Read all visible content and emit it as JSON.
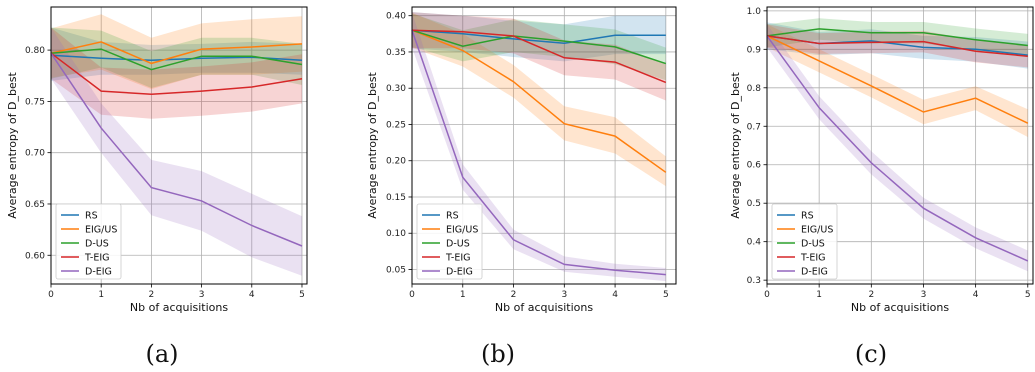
{
  "chart_data": [
    {
      "type": "line",
      "caption": "(a)",
      "xlabel": "Nb of acquisitions",
      "ylabel": "Average entropy of D_best",
      "x": [
        0,
        1,
        2,
        3,
        4,
        5
      ],
      "xlim": [
        0,
        5.1
      ],
      "ylim": [
        0.572,
        0.842
      ],
      "yticks": [
        0.6,
        0.65,
        0.7,
        0.75,
        0.8
      ],
      "ytick_labels": [
        "0.60",
        "0.65",
        "0.70",
        "0.75",
        "0.80"
      ],
      "grid": true,
      "legend_position": "lower-left",
      "series": [
        {
          "name": "RS",
          "color": "#1f77b4",
          "values": [
            0.795,
            0.792,
            0.79,
            0.792,
            0.793,
            0.79
          ],
          "lower": [
            0.77,
            0.776,
            0.776,
            0.778,
            0.778,
            0.776
          ],
          "upper": [
            0.822,
            0.808,
            0.805,
            0.806,
            0.808,
            0.806
          ]
        },
        {
          "name": "EIG/US",
          "color": "#ff7f0e",
          "values": [
            0.797,
            0.808,
            0.787,
            0.801,
            0.803,
            0.806
          ],
          "lower": [
            0.773,
            0.781,
            0.762,
            0.776,
            0.776,
            0.779
          ],
          "upper": [
            0.821,
            0.835,
            0.812,
            0.826,
            0.83,
            0.833
          ]
        },
        {
          "name": "D-US",
          "color": "#2ca02c",
          "values": [
            0.797,
            0.801,
            0.781,
            0.794,
            0.794,
            0.786
          ],
          "lower": [
            0.772,
            0.783,
            0.763,
            0.776,
            0.776,
            0.766
          ],
          "upper": [
            0.822,
            0.819,
            0.799,
            0.812,
            0.812,
            0.806
          ]
        },
        {
          "name": "T-EIG",
          "color": "#d62728",
          "values": [
            0.797,
            0.76,
            0.757,
            0.76,
            0.764,
            0.772
          ],
          "lower": [
            0.772,
            0.737,
            0.733,
            0.736,
            0.74,
            0.748
          ],
          "upper": [
            0.822,
            0.783,
            0.781,
            0.784,
            0.788,
            0.796
          ]
        },
        {
          "name": "D-EIG",
          "color": "#9467bd",
          "values": [
            0.797,
            0.724,
            0.666,
            0.653,
            0.629,
            0.609
          ],
          "lower": [
            0.772,
            0.7,
            0.639,
            0.624,
            0.598,
            0.58
          ],
          "upper": [
            0.822,
            0.748,
            0.693,
            0.682,
            0.66,
            0.638
          ]
        }
      ]
    },
    {
      "type": "line",
      "caption": "(b)",
      "xlabel": "Nb of acquisitions",
      "ylabel": "Average entropy of D_best",
      "x": [
        0,
        1,
        2,
        3,
        4,
        5
      ],
      "xlim": [
        0,
        5.2
      ],
      "ylim": [
        0.03,
        0.412
      ],
      "yticks": [
        0.05,
        0.1,
        0.15,
        0.2,
        0.25,
        0.3,
        0.35,
        0.4
      ],
      "ytick_labels": [
        "0.05",
        "0.10",
        "0.15",
        "0.20",
        "0.25",
        "0.30",
        "0.35",
        "0.40"
      ],
      "grid": true,
      "legend_position": "lower-left",
      "series": [
        {
          "name": "RS",
          "color": "#1f77b4",
          "values": [
            0.38,
            0.375,
            0.368,
            0.362,
            0.373,
            0.373
          ],
          "lower": [
            0.355,
            0.35,
            0.343,
            0.337,
            0.347,
            0.347
          ],
          "upper": [
            0.405,
            0.4,
            0.393,
            0.388,
            0.4,
            0.4
          ]
        },
        {
          "name": "EIG/US",
          "color": "#ff7f0e",
          "values": [
            0.38,
            0.352,
            0.309,
            0.251,
            0.234,
            0.184
          ],
          "lower": [
            0.356,
            0.33,
            0.287,
            0.228,
            0.21,
            0.165
          ],
          "upper": [
            0.404,
            0.375,
            0.332,
            0.275,
            0.26,
            0.206
          ]
        },
        {
          "name": "D-US",
          "color": "#2ca02c",
          "values": [
            0.38,
            0.358,
            0.372,
            0.365,
            0.357,
            0.334
          ],
          "lower": [
            0.357,
            0.337,
            0.35,
            0.343,
            0.333,
            0.311
          ],
          "upper": [
            0.403,
            0.38,
            0.395,
            0.388,
            0.381,
            0.356
          ]
        },
        {
          "name": "T-EIG",
          "color": "#d62728",
          "values": [
            0.38,
            0.378,
            0.372,
            0.342,
            0.336,
            0.308
          ],
          "lower": [
            0.355,
            0.355,
            0.348,
            0.318,
            0.312,
            0.283
          ],
          "upper": [
            0.405,
            0.4,
            0.396,
            0.366,
            0.36,
            0.333
          ]
        },
        {
          "name": "D-EIG",
          "color": "#9467bd",
          "values": [
            0.38,
            0.177,
            0.091,
            0.057,
            0.049,
            0.043
          ],
          "lower": [
            0.356,
            0.16,
            0.078,
            0.047,
            0.04,
            0.034
          ],
          "upper": [
            0.404,
            0.195,
            0.105,
            0.068,
            0.058,
            0.052
          ]
        }
      ]
    },
    {
      "type": "line",
      "caption": "(c)",
      "xlabel": "Nb of acquisitions",
      "ylabel": "Average entropy of D_best",
      "x": [
        0,
        1,
        2,
        3,
        4,
        5
      ],
      "xlim": [
        0,
        5.1
      ],
      "ylim": [
        0.29,
        1.01
      ],
      "yticks": [
        0.3,
        0.4,
        0.5,
        0.6,
        0.7,
        0.8,
        0.9,
        1.0
      ],
      "ytick_labels": [
        "0.3",
        "0.4",
        "0.5",
        "0.6",
        "0.7",
        "0.8",
        "0.9",
        "1.0"
      ],
      "grid": true,
      "legend_position": "lower-left",
      "series": [
        {
          "name": "RS",
          "color": "#1f77b4",
          "values": [
            0.935,
            0.915,
            0.922,
            0.905,
            0.9,
            0.885
          ],
          "lower": [
            0.9,
            0.885,
            0.89,
            0.875,
            0.868,
            0.85
          ],
          "upper": [
            0.97,
            0.945,
            0.952,
            0.935,
            0.932,
            0.92
          ]
        },
        {
          "name": "EIG/US",
          "color": "#ff7f0e",
          "values": [
            0.935,
            0.87,
            0.805,
            0.737,
            0.773,
            0.708
          ],
          "lower": [
            0.905,
            0.84,
            0.775,
            0.705,
            0.742,
            0.672
          ],
          "upper": [
            0.965,
            0.9,
            0.835,
            0.769,
            0.804,
            0.744
          ]
        },
        {
          "name": "D-US",
          "color": "#2ca02c",
          "values": [
            0.935,
            0.953,
            0.943,
            0.943,
            0.925,
            0.91
          ],
          "lower": [
            0.905,
            0.925,
            0.915,
            0.915,
            0.896,
            0.88
          ],
          "upper": [
            0.965,
            0.981,
            0.971,
            0.971,
            0.954,
            0.94
          ]
        },
        {
          "name": "T-EIG",
          "color": "#d62728",
          "values": [
            0.935,
            0.915,
            0.918,
            0.92,
            0.895,
            0.882
          ],
          "lower": [
            0.905,
            0.888,
            0.89,
            0.892,
            0.866,
            0.853
          ],
          "upper": [
            0.965,
            0.942,
            0.946,
            0.948,
            0.924,
            0.911
          ]
        },
        {
          "name": "D-EIG",
          "color": "#9467bd",
          "values": [
            0.935,
            0.748,
            0.605,
            0.487,
            0.41,
            0.35
          ],
          "lower": [
            0.905,
            0.718,
            0.575,
            0.46,
            0.383,
            0.323
          ],
          "upper": [
            0.965,
            0.778,
            0.635,
            0.514,
            0.437,
            0.377
          ]
        }
      ]
    }
  ]
}
